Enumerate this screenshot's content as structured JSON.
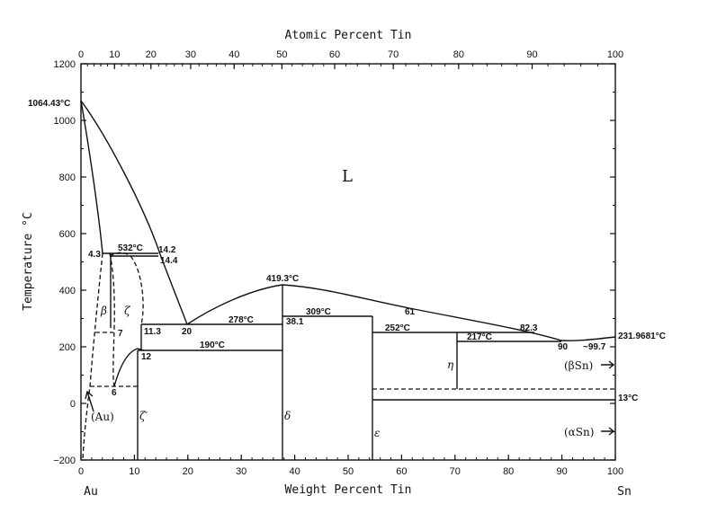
{
  "chart_data": {
    "type": "phase-diagram",
    "top_axis_title": "Atomic Percent Tin",
    "bottom_axis_title": "Weight Percent Tin",
    "y_axis_title": "Temperature °C",
    "y_ticks": [
      "1200",
      "1000",
      "800",
      "600",
      "400",
      "200",
      "0",
      "−200"
    ],
    "bottom_ticks": [
      "0",
      "10",
      "20",
      "30",
      "40",
      "50",
      "60",
      "70",
      "80",
      "90",
      "100"
    ],
    "top_ticks": [
      "0",
      "10",
      "20",
      "30",
      "40",
      "50",
      "60",
      "70",
      "80",
      "90",
      "100"
    ],
    "xlim_wt": [
      0,
      100
    ],
    "ylim": [
      -200,
      1200
    ],
    "left_element": "Au",
    "right_element": "Sn",
    "phase_labels": {
      "liquid": "L",
      "beta": "β",
      "zeta": "ζ",
      "zeta_prime": "ζ′",
      "au": "(Au)",
      "delta": "δ",
      "epsilon": "ε",
      "eta": "η",
      "beta_sn": "(βSn)",
      "alpha_sn": "(αSn)"
    },
    "annotations": {
      "au_melt": "1064.43°C",
      "p_43": "4.3",
      "zeta_max": "532°C",
      "p_142": "14.2",
      "p_144": "14.4",
      "p_7": "7",
      "p_113": "11.3",
      "p_12": "12",
      "p_6": "6",
      "p_20": "20",
      "t_278": "278°C",
      "p_381": "38.1",
      "t_190": "190°C",
      "delta_max": "419.3°C",
      "t_309": "309°C",
      "p_61": "61",
      "t_252": "252°C",
      "p_823": "82.3",
      "t_217": "217°C",
      "p_90": "90",
      "p_997": "~99.7",
      "sn_melt": "231.9681°C",
      "t_13": "13°C"
    }
  }
}
